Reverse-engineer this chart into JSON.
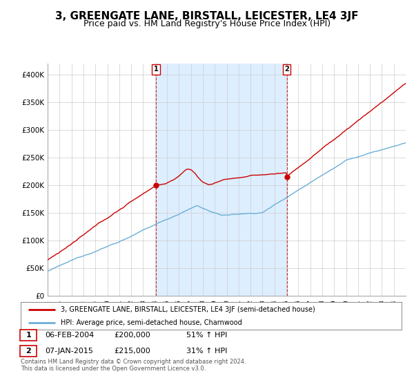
{
  "title": "3, GREENGATE LANE, BIRSTALL, LEICESTER, LE4 3JF",
  "subtitle": "Price paid vs. HM Land Registry's House Price Index (HPI)",
  "title_fontsize": 11,
  "subtitle_fontsize": 9,
  "ylabel_ticks": [
    "£0",
    "£50K",
    "£100K",
    "£150K",
    "£200K",
    "£250K",
    "£300K",
    "£350K",
    "£400K"
  ],
  "ytick_values": [
    0,
    50000,
    100000,
    150000,
    200000,
    250000,
    300000,
    350000,
    400000
  ],
  "ylim": [
    0,
    420000
  ],
  "xlim_start": 1995.0,
  "xlim_end": 2025.0,
  "hpi_color": "#6baed6",
  "price_color": "#cc0000",
  "shade_color": "#ddeeff",
  "marker1_x": 2004.08,
  "marker1_y": 200000,
  "marker2_x": 2015.03,
  "marker2_y": 215000,
  "legend_label1": "3, GREENGATE LANE, BIRSTALL, LEICESTER, LE4 3JF (semi-detached house)",
  "legend_label2": "HPI: Average price, semi-detached house, Charnwood",
  "background_color": "#ffffff",
  "grid_color": "#cccccc"
}
